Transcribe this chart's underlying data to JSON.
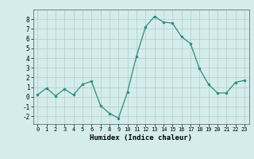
{
  "x": [
    0,
    1,
    2,
    3,
    4,
    5,
    6,
    7,
    8,
    9,
    10,
    11,
    12,
    13,
    14,
    15,
    16,
    17,
    18,
    19,
    20,
    21,
    22,
    23
  ],
  "y": [
    0.2,
    0.9,
    0.1,
    0.8,
    0.2,
    1.3,
    1.6,
    -0.9,
    -1.7,
    -2.2,
    0.5,
    4.2,
    7.2,
    8.3,
    7.7,
    7.6,
    6.2,
    5.5,
    2.9,
    1.3,
    0.4,
    0.4,
    1.5,
    1.7
  ],
  "xlabel": "Humidex (Indice chaleur)",
  "ylim": [
    -2.8,
    9.0
  ],
  "xlim": [
    -0.5,
    23.5
  ],
  "yticks": [
    -2,
    -1,
    0,
    1,
    2,
    3,
    4,
    5,
    6,
    7,
    8
  ],
  "xticks": [
    0,
    1,
    2,
    3,
    4,
    5,
    6,
    7,
    8,
    9,
    10,
    11,
    12,
    13,
    14,
    15,
    16,
    17,
    18,
    19,
    20,
    21,
    22,
    23
  ],
  "line_color": "#2e8b7a",
  "marker_color": "#2e8b7a",
  "bg_color": "#d4ecec",
  "grid_color": "#b0cccc"
}
